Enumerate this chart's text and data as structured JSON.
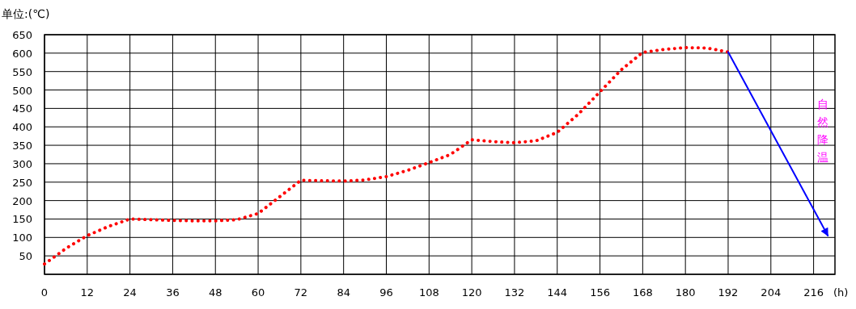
{
  "chart_data": {
    "type": "line",
    "ylabel": "单位:(℃)",
    "xlabel": "(h)",
    "xlim": [
      0,
      222
    ],
    "ylim": [
      0,
      650
    ],
    "xticks": [
      {
        "value": 0,
        "label": "0"
      },
      12,
      24,
      36,
      48,
      60,
      72,
      84,
      96,
      108,
      120,
      132,
      144,
      156,
      168,
      180,
      192,
      204,
      216
    ],
    "yticks": [
      {
        "value": 0,
        "label": null
      },
      50,
      100,
      150,
      200,
      250,
      300,
      350,
      400,
      450,
      500,
      550,
      600,
      650
    ],
    "grid": true,
    "series": [
      {
        "color": "#ff0000",
        "line_style": "dotted",
        "x": [
          0,
          6,
          12,
          18,
          24,
          30,
          36,
          42,
          48,
          54,
          60,
          66,
          72,
          78,
          84,
          90,
          96,
          102,
          108,
          114,
          120,
          126,
          132,
          138,
          144,
          150,
          156,
          162,
          168,
          174,
          180,
          186,
          192
        ],
        "values": [
          28,
          70,
          105,
          130,
          150,
          148,
          146,
          145,
          145,
          148,
          165,
          210,
          255,
          254,
          253,
          256,
          265,
          282,
          303,
          325,
          365,
          360,
          357,
          362,
          385,
          435,
          495,
          555,
          602,
          610,
          615,
          614,
          603
        ]
      },
      {
        "color": "#0000ff",
        "line_style": "solid",
        "x": [
          192,
          220
        ],
        "values": [
          603,
          105
        ]
      }
    ],
    "annotations": [
      "自然降温"
    ]
  }
}
